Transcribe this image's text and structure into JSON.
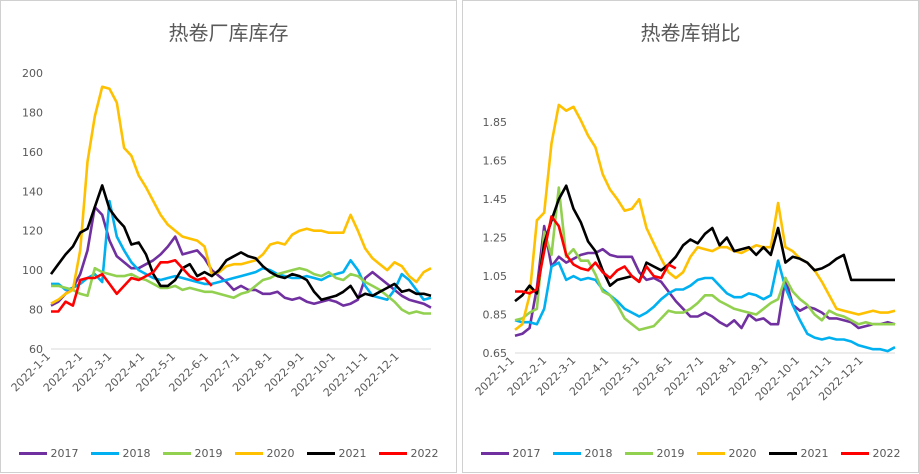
{
  "colors": {
    "2017": "#7030a0",
    "2018": "#00b0f0",
    "2019": "#92d050",
    "2020": "#ffc000",
    "2021": "#000000",
    "2022": "#ff0000"
  },
  "chart_data": [
    {
      "type": "line",
      "title": "热卷厂库库存",
      "ylim": [
        60,
        200
      ],
      "yticks": [
        "60",
        "80",
        "100",
        "120",
        "140",
        "160",
        "180",
        "200"
      ],
      "xlim": [
        0,
        52
      ],
      "xtick_positions": [
        0,
        4.4,
        8.4,
        12.9,
        17.1,
        21.6,
        25.9,
        30.3,
        34.7,
        39.0,
        43.4,
        47.7
      ],
      "xtick_labels": [
        "2022-1-1",
        "2022-2-1",
        "2022-3-1",
        "2022-4-1",
        "2022-5-1",
        "2022-6-1",
        "2022-7-1",
        "2022-8-1",
        "2022-9-1",
        "2022-10-1",
        "2022-11-1",
        "2022-12-1"
      ],
      "legend_position": "bottom",
      "grid": false,
      "series": [
        {
          "name": "2017",
          "values": [
            82,
            84,
            88,
            91,
            98,
            110,
            132,
            128,
            115,
            107,
            104,
            101,
            101,
            103,
            105,
            108,
            112,
            117,
            108,
            109,
            110,
            106,
            100,
            97,
            94,
            90,
            92,
            90,
            90,
            88,
            88,
            89,
            86,
            85,
            86,
            84,
            83,
            84,
            85,
            84,
            82,
            83,
            85,
            96,
            99,
            96,
            93,
            90,
            87,
            85,
            84,
            83,
            81
          ]
        },
        {
          "name": "2018",
          "values": [
            93,
            93,
            90,
            91,
            93,
            96,
            98,
            94,
            135,
            117,
            110,
            104,
            100,
            98,
            96,
            95,
            96,
            97,
            96,
            95,
            94,
            93,
            93,
            94,
            95,
            96,
            97,
            98,
            99,
            101,
            100,
            98,
            97,
            96,
            96,
            97,
            96,
            95,
            97,
            98,
            99,
            105,
            100,
            92,
            87,
            86,
            85,
            90,
            98,
            95,
            90,
            85,
            86
          ]
        },
        {
          "name": "2019",
          "values": [
            92,
            92,
            91,
            90,
            88,
            87,
            101,
            99,
            98,
            97,
            97,
            98,
            96,
            95,
            93,
            91,
            91,
            92,
            90,
            91,
            90,
            89,
            89,
            88,
            87,
            86,
            88,
            89,
            92,
            95,
            96,
            98,
            99,
            100,
            101,
            100,
            98,
            97,
            99,
            96,
            95,
            98,
            97,
            94,
            92,
            90,
            87,
            84,
            80,
            78,
            79,
            78,
            78
          ]
        },
        {
          "name": "2020",
          "values": [
            83,
            85,
            88,
            90,
            110,
            155,
            178,
            193,
            192,
            185,
            162,
            158,
            148,
            142,
            135,
            128,
            123,
            120,
            117,
            116,
            115,
            112,
            98,
            99,
            102,
            103,
            103,
            104,
            105,
            108,
            113,
            114,
            113,
            118,
            120,
            121,
            120,
            120,
            119,
            119,
            119,
            128,
            120,
            111,
            106,
            103,
            100,
            104,
            102,
            97,
            94,
            99,
            101
          ]
        },
        {
          "name": "2021",
          "values": [
            98,
            103,
            108,
            112,
            119,
            121,
            132,
            143,
            131,
            126,
            122,
            113,
            114,
            108,
            98,
            92,
            92,
            95,
            101,
            103,
            97,
            99,
            97,
            100,
            105,
            107,
            109,
            107,
            106,
            102,
            99,
            97,
            96,
            98,
            97,
            95,
            89,
            85,
            86,
            87,
            89,
            92,
            86,
            88,
            87,
            89,
            91,
            93,
            89,
            90,
            88,
            88,
            87
          ]
        },
        {
          "name": "2022",
          "values": [
            79,
            79,
            84,
            82,
            95,
            96,
            96,
            98,
            93,
            88,
            92,
            96,
            95,
            97,
            99,
            104,
            104,
            105,
            101,
            97,
            95,
            96,
            92
          ]
        }
      ]
    },
    {
      "type": "line",
      "title": "热卷库销比",
      "ylim": [
        0.65,
        1.95
      ],
      "yticks": [
        "0.65",
        "0.85",
        "1.05",
        "1.25",
        "1.45",
        "1.65",
        "1.85"
      ],
      "xlim": [
        0,
        52
      ],
      "xtick_positions": [
        0,
        4.4,
        8.4,
        12.9,
        17.1,
        21.6,
        25.9,
        30.3,
        34.7,
        39.0,
        43.4,
        47.7
      ],
      "xtick_labels": [
        "2022-1-1",
        "2022-2-1",
        "2022-3-1",
        "2022-4-1",
        "2022-5-1",
        "2022-6-1",
        "2022-7-1",
        "2022-8-1",
        "2022-9-1",
        "2022-10-1",
        "2022-11-1",
        "2022-12-1"
      ],
      "legend_position": "bottom",
      "grid": false,
      "series": [
        {
          "name": "2017",
          "values": [
            0.74,
            0.75,
            0.78,
            0.99,
            1.31,
            1.1,
            1.15,
            1.12,
            1.14,
            1.16,
            1.17,
            1.17,
            1.19,
            1.16,
            1.15,
            1.15,
            1.15,
            1.07,
            1.03,
            1.04,
            1.02,
            0.97,
            0.92,
            0.88,
            0.84,
            0.84,
            0.86,
            0.84,
            0.81,
            0.79,
            0.82,
            0.78,
            0.85,
            0.82,
            0.83,
            0.8,
            0.8,
            1.04,
            0.9,
            0.87,
            0.89,
            0.88,
            0.86,
            0.83,
            0.83,
            0.82,
            0.81,
            0.78,
            0.79,
            0.8,
            0.8,
            0.81,
            0.8
          ]
        },
        {
          "name": "2018",
          "values": [
            0.82,
            0.81,
            0.81,
            0.8,
            0.88,
            1.1,
            1.12,
            1.03,
            1.05,
            1.03,
            1.04,
            1.03,
            0.98,
            0.95,
            0.92,
            0.88,
            0.86,
            0.84,
            0.86,
            0.89,
            0.93,
            0.96,
            0.98,
            0.98,
            1.0,
            1.03,
            1.04,
            1.04,
            1.0,
            0.96,
            0.94,
            0.94,
            0.96,
            0.95,
            0.93,
            0.95,
            1.13,
            0.99,
            0.9,
            0.82,
            0.75,
            0.73,
            0.72,
            0.73,
            0.72,
            0.72,
            0.71,
            0.69,
            0.68,
            0.67,
            0.67,
            0.66,
            0.68
          ]
        },
        {
          "name": "2019",
          "values": [
            0.82,
            0.83,
            0.86,
            0.88,
            1.28,
            1.16,
            1.51,
            1.15,
            1.19,
            1.13,
            1.13,
            1.06,
            0.97,
            0.95,
            0.9,
            0.83,
            0.8,
            0.77,
            0.78,
            0.79,
            0.83,
            0.87,
            0.86,
            0.86,
            0.88,
            0.91,
            0.95,
            0.95,
            0.92,
            0.9,
            0.88,
            0.87,
            0.86,
            0.85,
            0.88,
            0.91,
            0.93,
            1.04,
            0.97,
            0.93,
            0.9,
            0.85,
            0.82,
            0.87,
            0.85,
            0.84,
            0.82,
            0.8,
            0.81,
            0.8,
            0.8,
            0.8,
            0.8
          ]
        },
        {
          "name": "2020",
          "values": [
            0.77,
            0.8,
            0.95,
            1.34,
            1.38,
            1.74,
            1.94,
            1.91,
            1.93,
            1.86,
            1.78,
            1.72,
            1.58,
            1.5,
            1.45,
            1.39,
            1.4,
            1.45,
            1.3,
            1.22,
            1.14,
            1.07,
            1.04,
            1.07,
            1.15,
            1.2,
            1.19,
            1.18,
            1.2,
            1.2,
            1.18,
            1.17,
            1.19,
            1.21,
            1.2,
            1.2,
            1.43,
            1.2,
            1.18,
            1.14,
            1.12,
            1.08,
            1.02,
            0.95,
            0.88,
            0.87,
            0.86,
            0.85,
            0.86,
            0.87,
            0.86,
            0.86,
            0.87
          ]
        },
        {
          "name": "2021",
          "values": [
            0.92,
            0.95,
            1.0,
            0.96,
            1.22,
            1.34,
            1.45,
            1.52,
            1.4,
            1.33,
            1.23,
            1.18,
            1.08,
            1.0,
            1.03,
            1.04,
            1.05,
            1.02,
            1.12,
            1.1,
            1.08,
            1.11,
            1.15,
            1.21,
            1.24,
            1.22,
            1.27,
            1.3,
            1.21,
            1.25,
            1.18,
            1.19,
            1.2,
            1.16,
            1.2,
            1.16,
            1.3,
            1.12,
            1.15,
            1.14,
            1.12,
            1.08,
            1.09,
            1.11,
            1.14,
            1.16,
            1.03,
            1.03,
            1.03,
            1.03,
            1.03,
            1.03,
            1.03
          ]
        },
        {
          "name": "2022",
          "values": [
            0.97,
            0.97,
            0.96,
            0.98,
            1.18,
            1.36,
            1.31,
            1.16,
            1.11,
            1.09,
            1.08,
            1.12,
            1.07,
            1.04,
            1.08,
            1.1,
            1.05,
            1.02,
            1.1,
            1.05,
            1.04,
            1.11,
            1.09
          ]
        }
      ]
    }
  ]
}
